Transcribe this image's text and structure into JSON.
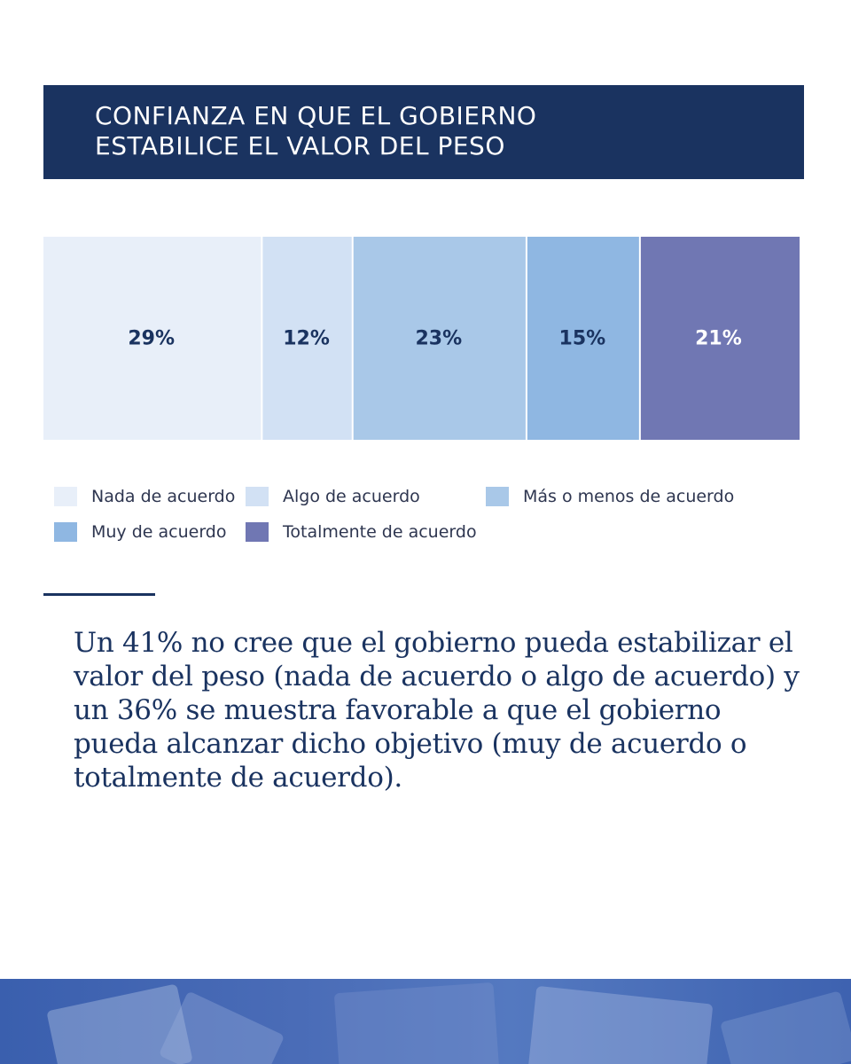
{
  "header": {
    "title_line1": "CONFIANZA EN QUE EL GOBIERNO",
    "title_line2": "ESTABILICE EL VALOR DEL PESO"
  },
  "chart_data": {
    "type": "bar",
    "orientation": "horizontal-stacked-100",
    "title": "Confianza en que el gobierno estabilice el valor del peso",
    "categories": [
      "Nada de acuerdo",
      "Algo de acuerdo",
      "Más o menos de acuerdo",
      "Muy de acuerdo",
      "Totalmente de acuerdo"
    ],
    "values": [
      29,
      12,
      23,
      15,
      21
    ],
    "data_labels": [
      "29%",
      "12%",
      "23%",
      "15%",
      "21%"
    ],
    "colors": [
      "#e8eff9",
      "#d2e1f4",
      "#a9c8e8",
      "#8fb7e2",
      "#7077b3"
    ],
    "label_colors": [
      "#1a3360",
      "#1a3360",
      "#1a3360",
      "#1a3360",
      "#ffffff"
    ],
    "unit": "%",
    "legend_position": "bottom"
  },
  "legend": {
    "items": [
      {
        "label": "Nada de acuerdo",
        "color": "#e8eff9"
      },
      {
        "label": "Algo de acuerdo",
        "color": "#d2e1f4"
      },
      {
        "label": "Más o menos de acuerdo",
        "color": "#a9c8e8"
      },
      {
        "label": "Muy de acuerdo",
        "color": "#8fb7e2"
      },
      {
        "label": "Totalmente de acuerdo",
        "color": "#7077b3"
      }
    ]
  },
  "summary": {
    "text": "Un 41% no cree que el gobierno pueda estabilizar el valor del peso (nada de acuerdo o algo de acuerdo) y un 36% se muestra favorable a que el gobierno pueda alcanzar dicho objetivo (muy de acuerdo o totalmente de acuerdo)."
  },
  "theme": {
    "primary": "#1a3360",
    "banner": "#3e62b0"
  }
}
